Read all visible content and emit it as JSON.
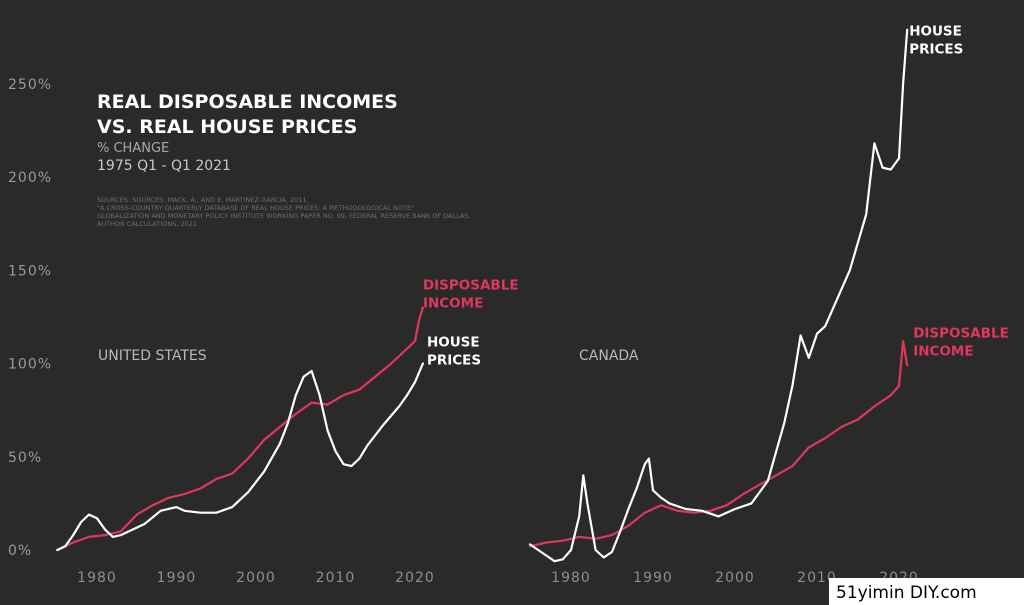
{
  "chart_data": {
    "type": "line",
    "title": [
      "REAL DISPOSABLE INCOMES",
      "VS. REAL HOUSE PRICES"
    ],
    "subtitle": "% CHANGE",
    "date_range": "1975 Q1 - Q1 2021",
    "sources": [
      "SOURCES: SOURCES: MACK, A., AND E. MARTINEZ-GARCIA, 2011.",
      "\"A CROSS-COUNTRY QUARTERLY DATABASE OF REAL HOUSE PRICES: A METHODOLOGICAL NOTE\"",
      "GLOBALIZATION AND MONETARY POLICY INSTITUTE WORKING PAPER NO. 99, FEDERAL RESERVE BANK OF DALLAS,",
      "AUTHOR CALCULATIONS, 2021"
    ],
    "ylim": [
      0,
      275
    ],
    "y_ticks": [
      0,
      50,
      100,
      150,
      200,
      250
    ],
    "y_tick_labels": [
      "0%",
      "50%",
      "100%",
      "150%",
      "200%",
      "250%"
    ],
    "x_ticks": [
      1980,
      1990,
      2000,
      2010,
      2020
    ],
    "grid": false,
    "colors": {
      "background": "#2a2a2b",
      "income": "#e0375c",
      "house": "#ffffff"
    },
    "panels": [
      {
        "name": "UNITED STATES",
        "series": [
          {
            "name": [
              "DISPOSABLE",
              "INCOME"
            ],
            "color": "#e0375c",
            "x": [
              1975,
              1977,
              1979,
              1981,
              1983,
              1985,
              1987,
              1989,
              1991,
              1993,
              1995,
              1997,
              1999,
              2001,
              2003,
              2005,
              2007,
              2009,
              2011,
              2013,
              2015,
              2017,
              2019,
              2020,
              2020.5,
              2021
            ],
            "y": [
              0,
              4,
              7,
              8,
              10,
              19,
              24,
              28,
              30,
              33,
              38,
              41,
              49,
              59,
              66,
              73,
              79,
              78,
              83,
              86,
              93,
              100,
              108,
              112,
              123,
              130
            ]
          },
          {
            "name": [
              "HOUSE",
              "PRICES"
            ],
            "color": "#ffffff",
            "x": [
              1975,
              1976,
              1977,
              1978,
              1979,
              1980,
              1981,
              1982,
              1983,
              1984,
              1986,
              1988,
              1990,
              1991,
              1993,
              1995,
              1997,
              1999,
              2001,
              2003,
              2004,
              2005,
              2006,
              2007,
              2008,
              2009,
              2010,
              2011,
              2012,
              2013,
              2014,
              2016,
              2018,
              2019,
              2020,
              2021
            ],
            "y": [
              0,
              2,
              8,
              15,
              19,
              17,
              11,
              7,
              8,
              10,
              14,
              21,
              23,
              21,
              20,
              20,
              23,
              31,
              42,
              57,
              68,
              83,
              93,
              96,
              83,
              64,
              53,
              46,
              45,
              49,
              56,
              67,
              77,
              83,
              90,
              100
            ]
          }
        ]
      },
      {
        "name": "CANADA",
        "series": [
          {
            "name": [
              "DISPOSABLE",
              "INCOME"
            ],
            "color": "#e0375c",
            "x": [
              1975,
              1977,
              1979,
              1981,
              1983,
              1985,
              1987,
              1989,
              1991,
              1993,
              1995,
              1997,
              1999,
              2001,
              2003,
              2005,
              2007,
              2009,
              2011,
              2013,
              2015,
              2017,
              2019,
              2020,
              2020.5,
              2021
            ],
            "y": [
              2,
              4,
              5,
              7,
              6,
              8,
              13,
              20,
              24,
              21,
              20,
              21,
              24,
              30,
              35,
              40,
              45,
              55,
              60,
              66,
              70,
              77,
              83,
              88,
              112,
              99
            ]
          },
          {
            "name": [
              "HOUSE",
              "PRICES"
            ],
            "color": "#ffffff",
            "x": [
              1975,
              1976,
              1977,
              1978,
              1979,
              1980,
              1981,
              1981.5,
              1982,
              1983,
              1984,
              1985,
              1986,
              1987,
              1988,
              1989,
              1989.5,
              1990,
              1991,
              1992,
              1994,
              1996,
              1998,
              2000,
              2002,
              2004,
              2006,
              2007,
              2008,
              2009,
              2010,
              2011,
              2012,
              2014,
              2016,
              2017,
              2018,
              2019,
              2020,
              2020.5,
              2021
            ],
            "y": [
              3,
              0,
              -3,
              -6,
              -5,
              0,
              18,
              40,
              25,
              0,
              -4,
              -1,
              10,
              22,
              33,
              46,
              49,
              32,
              28,
              25,
              22,
              21,
              18,
              22,
              25,
              37,
              68,
              88,
              115,
              103,
              116,
              120,
              130,
              150,
              180,
              218,
              205,
              204,
              210,
              250,
              279
            ]
          }
        ]
      }
    ]
  },
  "watermark": "51yimin DIY.com"
}
